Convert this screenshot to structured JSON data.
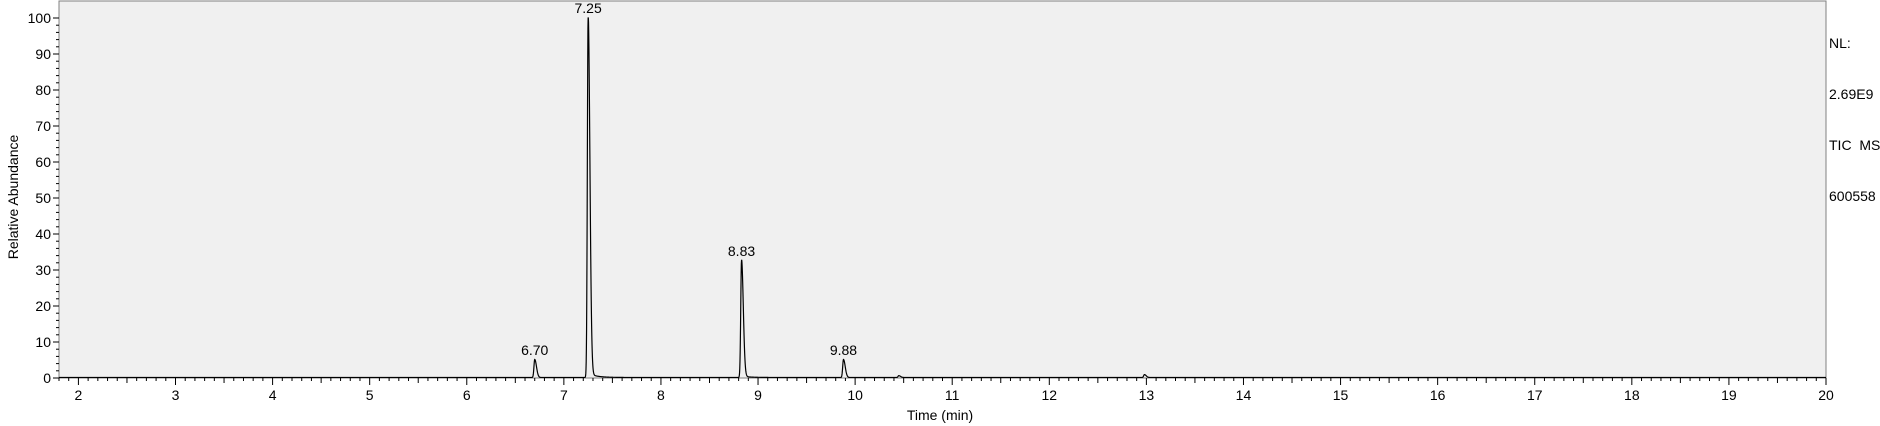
{
  "chart_data": {
    "type": "line",
    "xlabel": "Time (min)",
    "ylabel": "Relative Abundance",
    "xlim": [
      1.8,
      20
    ],
    "ylim": [
      0,
      100
    ],
    "x_ticks": [
      "2",
      "3",
      "4",
      "5",
      "6",
      "7",
      "8",
      "9",
      "10",
      "11",
      "12",
      "13",
      "14",
      "15",
      "16",
      "17",
      "18",
      "19",
      "20"
    ],
    "y_ticks": [
      "0",
      "10",
      "20",
      "30",
      "40",
      "50",
      "60",
      "70",
      "80",
      "90",
      "100"
    ],
    "grid": false,
    "plot_background": "#f0f0f0",
    "line_color": "#000000",
    "peaks": [
      {
        "x": 6.7,
        "y": 5,
        "label": "6.70"
      },
      {
        "x": 7.25,
        "y": 100,
        "label": "7.25"
      },
      {
        "x": 8.83,
        "y": 32.5,
        "label": "8.83"
      },
      {
        "x": 9.88,
        "y": 5,
        "label": "9.88"
      }
    ],
    "minor_peaks": [
      {
        "x": 10.45,
        "y": 0.5
      },
      {
        "x": 12.98,
        "y": 0.8
      }
    ]
  },
  "side_info": {
    "nl_label": "NL:",
    "nl_value": "2.69E9",
    "trace": "TIC  MS",
    "sample": "600558"
  }
}
